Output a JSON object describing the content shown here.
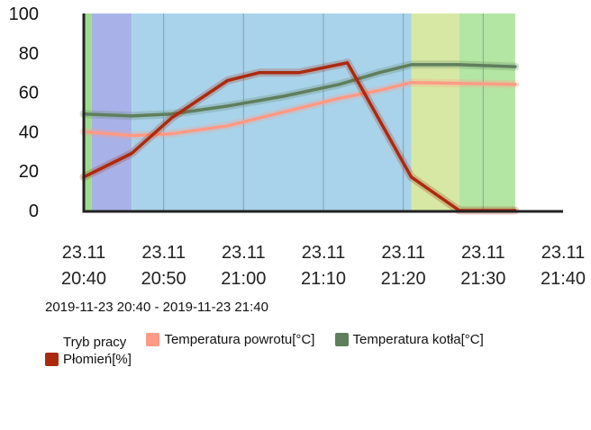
{
  "chart_data": {
    "type": "line",
    "ylim": [
      0,
      100
    ],
    "yticks": [
      0,
      20,
      40,
      60,
      80,
      100
    ],
    "xlim": [
      "2019-11-23 20:40",
      "2019-11-23 21:40"
    ],
    "xticks": [
      {
        "date": "23.11",
        "time": "20:40"
      },
      {
        "date": "23.11",
        "time": "20:50"
      },
      {
        "date": "23.11",
        "time": "21:00"
      },
      {
        "date": "23.11",
        "time": "21:10"
      },
      {
        "date": "23.11",
        "time": "21:20"
      },
      {
        "date": "23.11",
        "time": "21:30"
      },
      {
        "date": "23.11",
        "time": "21:40"
      }
    ],
    "grid": true,
    "legend_position": "bottom",
    "mode_bands": {
      "name": "Tryb pracy",
      "bands": [
        {
          "start": "20:40",
          "end": "20:41",
          "color": "#9fdc8c"
        },
        {
          "start": "20:41",
          "end": "20:46",
          "color": "#a9b2e8"
        },
        {
          "start": "20:46",
          "end": "21:21",
          "color": "#a9d3ea"
        },
        {
          "start": "21:21",
          "end": "21:27",
          "color": "#d7e8a4"
        },
        {
          "start": "21:27",
          "end": "21:34",
          "color": "#b3e6a3"
        }
      ]
    },
    "series": [
      {
        "name": "Temperatura powrotu[°C]",
        "color": "#ff9a86",
        "points": [
          {
            "x": "20:40",
            "y": 40
          },
          {
            "x": "20:46",
            "y": 38
          },
          {
            "x": "20:51",
            "y": 39
          },
          {
            "x": "20:58",
            "y": 43
          },
          {
            "x": "21:05",
            "y": 50
          },
          {
            "x": "21:12",
            "y": 57
          },
          {
            "x": "21:17",
            "y": 61
          },
          {
            "x": "21:21",
            "y": 65
          },
          {
            "x": "21:34",
            "y": 64
          }
        ]
      },
      {
        "name": "Temperatura kotła[°C]",
        "color": "#5f7e5c",
        "points": [
          {
            "x": "20:40",
            "y": 49
          },
          {
            "x": "20:46",
            "y": 48
          },
          {
            "x": "20:51",
            "y": 49
          },
          {
            "x": "20:58",
            "y": 53
          },
          {
            "x": "21:05",
            "y": 58
          },
          {
            "x": "21:12",
            "y": 64
          },
          {
            "x": "21:17",
            "y": 70
          },
          {
            "x": "21:21",
            "y": 74
          },
          {
            "x": "21:27",
            "y": 74
          },
          {
            "x": "21:34",
            "y": 73
          }
        ]
      },
      {
        "name": "Płomień[%]",
        "color": "#aa2a10",
        "points": [
          {
            "x": "20:40",
            "y": 17
          },
          {
            "x": "20:46",
            "y": 29
          },
          {
            "x": "20:51",
            "y": 47
          },
          {
            "x": "20:58",
            "y": 66
          },
          {
            "x": "21:02",
            "y": 70
          },
          {
            "x": "21:07",
            "y": 70
          },
          {
            "x": "21:13",
            "y": 75
          },
          {
            "x": "21:21",
            "y": 17
          },
          {
            "x": "21:27",
            "y": 0
          },
          {
            "x": "21:34",
            "y": 0
          }
        ]
      }
    ]
  },
  "date_range": "2019-11-23 20:40 - 2019-11-23 21:40"
}
